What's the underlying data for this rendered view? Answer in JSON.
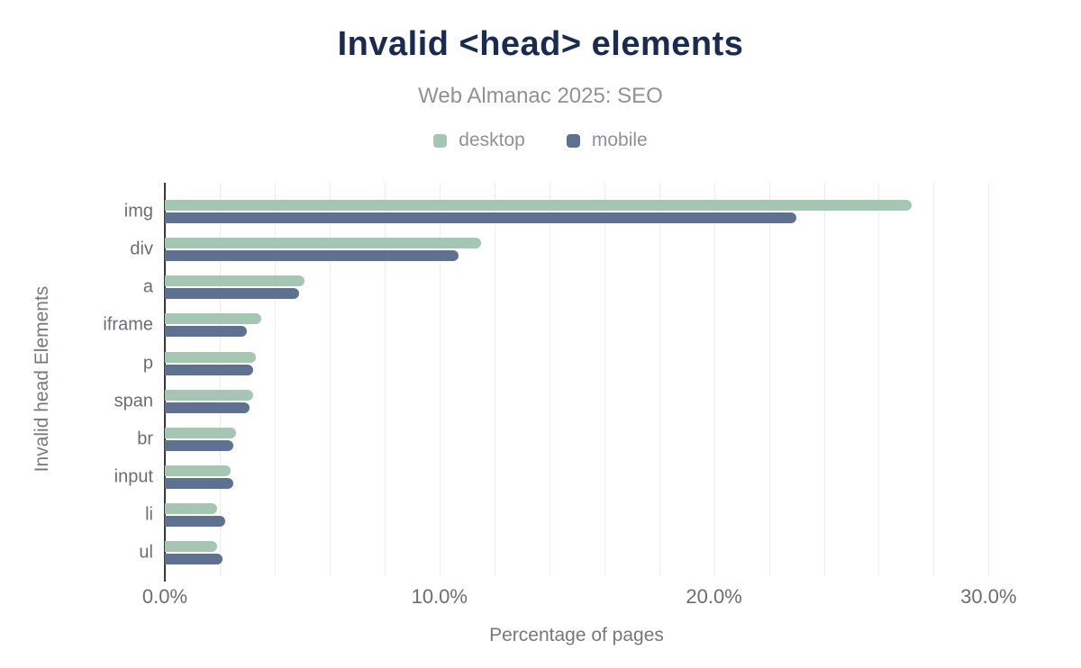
{
  "header": {
    "title": "Invalid <head> elements",
    "subtitle": "Web Almanac 2025: SEO"
  },
  "legend": {
    "position": "top-center",
    "items": [
      {
        "label": "desktop",
        "color": "#a5c6b3"
      },
      {
        "label": "mobile",
        "color": "#5e7191"
      }
    ]
  },
  "chart_data": {
    "type": "bar",
    "orientation": "horizontal",
    "title": "Invalid <head> elements",
    "subtitle": "Web Almanac 2025: SEO",
    "xlabel": "Percentage of pages",
    "ylabel": "Invalid head Elements",
    "categories": [
      "img",
      "div",
      "a",
      "iframe",
      "p",
      "span",
      "br",
      "input",
      "li",
      "ul"
    ],
    "series": [
      {
        "name": "desktop",
        "color": "#a5c6b3",
        "values": [
          27.2,
          11.5,
          5.1,
          3.5,
          3.3,
          3.2,
          2.6,
          2.4,
          1.9,
          1.9
        ]
      },
      {
        "name": "mobile",
        "color": "#5e7191",
        "values": [
          23.0,
          10.7,
          4.9,
          3.0,
          3.2,
          3.1,
          2.5,
          2.5,
          2.2,
          2.1
        ]
      }
    ],
    "xlim": [
      0,
      30
    ],
    "xticks": [
      0,
      10,
      20,
      30
    ],
    "xtick_labels": [
      "0.0%",
      "10.0%",
      "20.0%",
      "30.0%"
    ],
    "xgrid_step_pct": 2,
    "grid": "vertical-minor-on",
    "value_unit": "%"
  },
  "colors": {
    "title": "#1a2b50",
    "subtitle": "#8e9297",
    "axis_line": "#37393c",
    "gridline": "#ededed",
    "tick_text": "#6a6e73",
    "axis_title_text": "#75797f",
    "background": "#ffffff"
  }
}
